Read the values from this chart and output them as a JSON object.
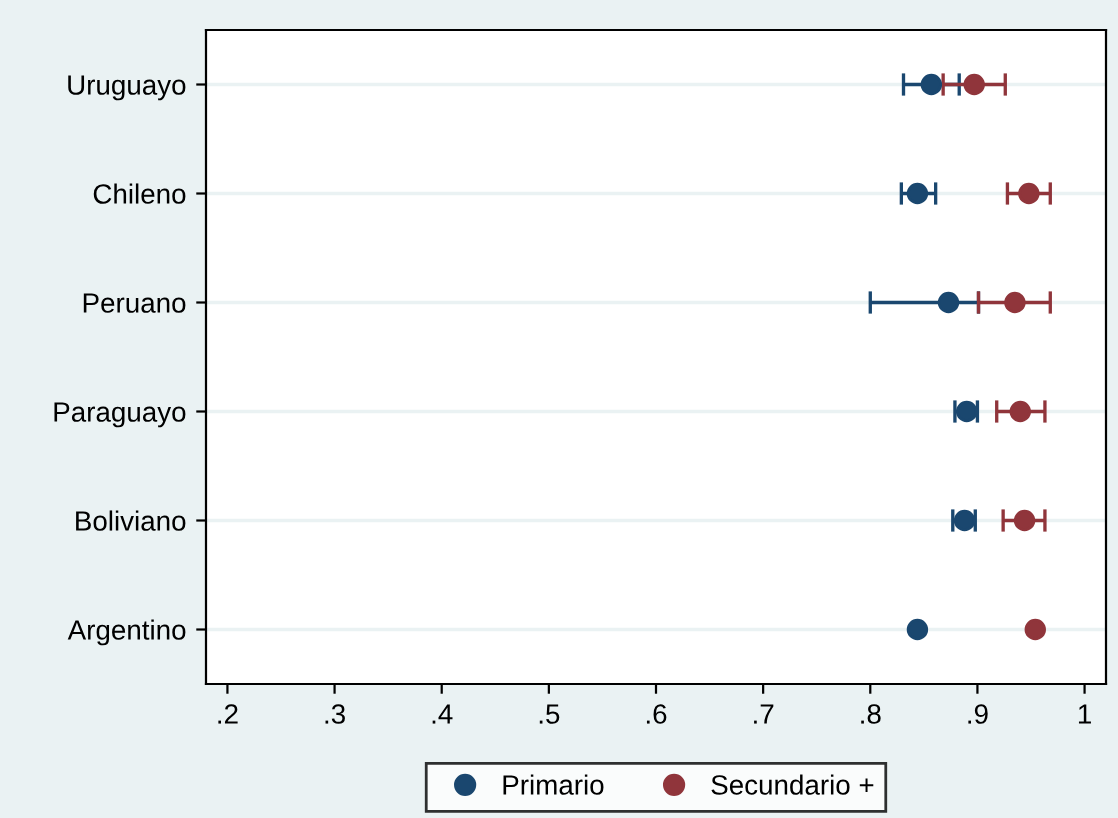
{
  "chart_data": {
    "type": "scatter",
    "orientation": "horizontal",
    "categories": [
      "Uruguayo",
      "Chileno",
      "Peruano",
      "Paraguayo",
      "Boliviano",
      "Argentino"
    ],
    "series": [
      {
        "name": "Primario",
        "color": "#1a476f",
        "values": [
          0.857,
          0.844,
          0.873,
          0.89,
          0.888,
          0.844
        ],
        "errors": [
          [
            0.831,
            0.883
          ],
          [
            0.829,
            0.861
          ],
          [
            0.8,
            0.901
          ],
          [
            0.879,
            0.9
          ],
          [
            0.877,
            0.898
          ],
          null
        ]
      },
      {
        "name": "Secundario +",
        "color": "#90353b",
        "values": [
          0.897,
          0.948,
          0.935,
          0.94,
          0.944,
          0.954
        ],
        "errors": [
          [
            0.868,
            0.926
          ],
          [
            0.928,
            0.968
          ],
          [
            0.901,
            0.968
          ],
          [
            0.918,
            0.963
          ],
          [
            0.924,
            0.963
          ],
          null
        ]
      }
    ],
    "xlim": [
      0.18,
      1.02
    ],
    "xticks": [
      {
        "value": 0.2,
        "label": ".2"
      },
      {
        "value": 0.3,
        "label": ".3"
      },
      {
        "value": 0.4,
        "label": ".4"
      },
      {
        "value": 0.5,
        "label": ".5"
      },
      {
        "value": 0.6,
        "label": ".6"
      },
      {
        "value": 0.7,
        "label": ".7"
      },
      {
        "value": 0.8,
        "label": ".8"
      },
      {
        "value": 0.9,
        "label": ".9"
      },
      {
        "value": 1,
        "label": "1"
      }
    ],
    "grid": "y",
    "legend": "bottom",
    "marker": "circle"
  }
}
